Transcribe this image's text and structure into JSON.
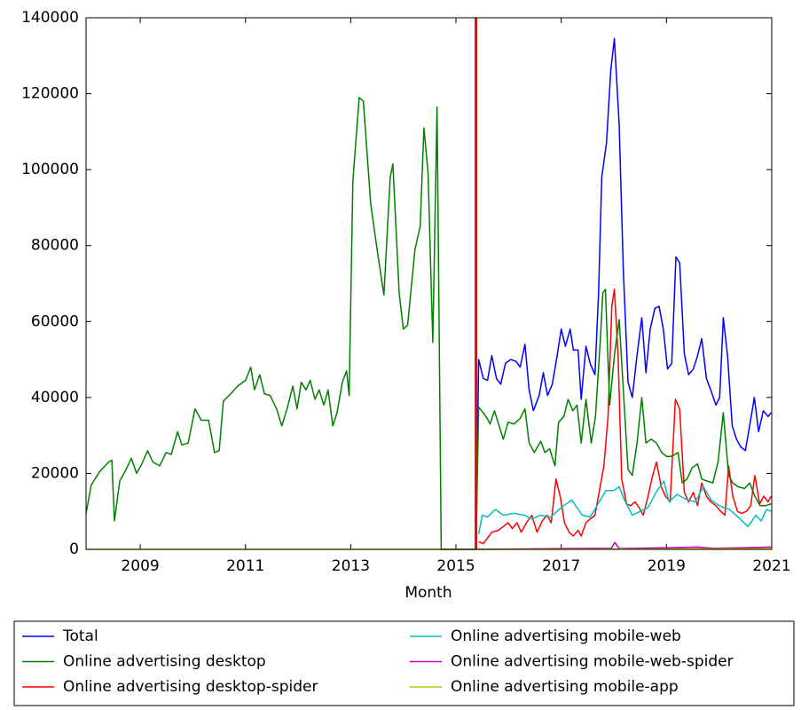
{
  "chart_data": {
    "type": "line",
    "xlabel": "Month",
    "xlim": [
      2007.97,
      2021.0
    ],
    "xticks": [
      2009,
      2011,
      2013,
      2015,
      2017,
      2019,
      2021
    ],
    "ylim": [
      0,
      140000
    ],
    "yticks": [
      0,
      20000,
      40000,
      60000,
      80000,
      100000,
      120000,
      140000
    ],
    "grid": false,
    "legend": "bottom",
    "vline": {
      "x": 2015.38,
      "color": "#ff0000"
    },
    "series": [
      {
        "name": "Total",
        "color": "#0000ff",
        "x": [
          2015.38,
          2015.43,
          2015.52,
          2015.6,
          2015.68,
          2015.77,
          2015.85,
          2015.94,
          2016.04,
          2016.14,
          2016.22,
          2016.31,
          2016.39,
          2016.47,
          2016.58,
          2016.66,
          2016.74,
          2016.83,
          2016.91,
          2017.0,
          2017.08,
          2017.17,
          2017.23,
          2017.32,
          2017.38,
          2017.47,
          2017.55,
          2017.64,
          2017.71,
          2017.77,
          2017.86,
          2017.94,
          2018.01,
          2018.1,
          2018.18,
          2018.27,
          2018.35,
          2018.44,
          2018.53,
          2018.61,
          2018.69,
          2018.78,
          2018.86,
          2018.94,
          2019.02,
          2019.1,
          2019.18,
          2019.25,
          2019.34,
          2019.42,
          2019.51,
          2019.59,
          2019.67,
          2019.76,
          2019.84,
          2019.94,
          2020.01,
          2020.08,
          2020.16,
          2020.25,
          2020.33,
          2020.41,
          2020.5,
          2020.58,
          2020.67,
          2020.75,
          2020.84,
          2020.93,
          2020.99
        ],
        "values": [
          0,
          50000,
          45000,
          44500,
          51000,
          45000,
          43500,
          49000,
          50000,
          49500,
          48000,
          54000,
          42000,
          36500,
          40500,
          46500,
          40500,
          43500,
          50000,
          58000,
          53500,
          58000,
          52500,
          52500,
          39500,
          53500,
          49000,
          46000,
          67500,
          98000,
          107000,
          126000,
          134500,
          112000,
          73500,
          44000,
          40000,
          51000,
          61000,
          46500,
          58000,
          63500,
          64000,
          58000,
          47500,
          49000,
          77000,
          75500,
          51500,
          46000,
          47500,
          51000,
          55500,
          45000,
          42000,
          38000,
          40000,
          61000,
          51000,
          32500,
          29000,
          27000,
          26000,
          32500,
          40000,
          31000,
          36500,
          35000,
          36000
        ]
      },
      {
        "name": "Online advertising desktop",
        "color": "#008000",
        "x": [
          2007.97,
          2008.07,
          2008.23,
          2008.4,
          2008.46,
          2008.51,
          2008.61,
          2008.73,
          2008.83,
          2008.93,
          2009.03,
          2009.14,
          2009.24,
          2009.37,
          2009.49,
          2009.59,
          2009.71,
          2009.79,
          2009.91,
          2010.04,
          2010.16,
          2010.3,
          2010.41,
          2010.5,
          2010.58,
          2010.72,
          2010.85,
          2011.0,
          2011.1,
          2011.17,
          2011.27,
          2011.36,
          2011.47,
          2011.59,
          2011.69,
          2011.79,
          2011.9,
          2011.98,
          2012.06,
          2012.15,
          2012.23,
          2012.32,
          2012.4,
          2012.49,
          2012.57,
          2012.66,
          2012.74,
          2012.84,
          2012.92,
          2012.97,
          2013.04,
          2013.16,
          2013.24,
          2013.38,
          2013.5,
          2013.63,
          2013.75,
          2013.8,
          2013.92,
          2014.0,
          2014.08,
          2014.22,
          2014.32,
          2014.39,
          2014.47,
          2014.56,
          2014.64,
          2014.72,
          2015.38,
          2015.43,
          2015.57,
          2015.65,
          2015.73,
          2015.82,
          2015.9,
          2015.99,
          2016.1,
          2016.22,
          2016.31,
          2016.39,
          2016.49,
          2016.61,
          2016.69,
          2016.78,
          2016.88,
          2016.95,
          2017.05,
          2017.13,
          2017.22,
          2017.3,
          2017.38,
          2017.47,
          2017.57,
          2017.65,
          2017.74,
          2017.79,
          2017.84,
          2017.92,
          2018.01,
          2018.1,
          2018.18,
          2018.27,
          2018.35,
          2018.44,
          2018.53,
          2018.61,
          2018.71,
          2018.81,
          2018.91,
          2019.0,
          2019.1,
          2019.22,
          2019.3,
          2019.39,
          2019.49,
          2019.59,
          2019.67,
          2019.77,
          2019.88,
          2019.98,
          2020.08,
          2020.18,
          2020.26,
          2020.36,
          2020.48,
          2020.58,
          2020.68,
          2020.78,
          2020.88,
          2020.99
        ],
        "values": [
          9500,
          17000,
          20500,
          23000,
          23500,
          7500,
          18000,
          21000,
          24000,
          20000,
          22500,
          26000,
          23000,
          22000,
          25500,
          25000,
          31000,
          27500,
          28000,
          37000,
          34000,
          34000,
          25500,
          26000,
          39000,
          41000,
          43000,
          44500,
          48000,
          42000,
          46000,
          41000,
          40500,
          37000,
          32500,
          37000,
          43000,
          37000,
          44000,
          42000,
          44500,
          39500,
          42000,
          38000,
          42000,
          32500,
          36000,
          44000,
          47000,
          40500,
          97000,
          119000,
          118000,
          91000,
          79000,
          67000,
          98000,
          101500,
          67500,
          58000,
          59000,
          79000,
          85000,
          111000,
          99000,
          54500,
          116500,
          0,
          0,
          37500,
          35000,
          33000,
          36500,
          32500,
          29000,
          33500,
          33000,
          34500,
          37000,
          28000,
          25500,
          28500,
          25500,
          26500,
          22000,
          33500,
          35000,
          39500,
          36500,
          38000,
          28000,
          39500,
          28000,
          35000,
          54500,
          67500,
          68500,
          38000,
          51000,
          60500,
          42000,
          21000,
          19500,
          28000,
          40000,
          28000,
          29000,
          28000,
          25500,
          24500,
          24500,
          25500,
          17500,
          18500,
          21500,
          22500,
          18500,
          18000,
          17500,
          23000,
          36000,
          19500,
          17500,
          16500,
          16000,
          17500,
          14000,
          11500,
          11500,
          12000
        ]
      },
      {
        "name": "Online advertising desktop-spider",
        "color": "#ff0000",
        "x": [
          2015.43,
          2015.52,
          2015.6,
          2015.68,
          2015.8,
          2015.9,
          2015.99,
          2016.07,
          2016.16,
          2016.24,
          2016.34,
          2016.44,
          2016.54,
          2016.64,
          2016.73,
          2016.81,
          2016.9,
          2016.98,
          2017.06,
          2017.15,
          2017.23,
          2017.32,
          2017.38,
          2017.47,
          2017.55,
          2017.64,
          2017.72,
          2017.81,
          2017.89,
          2017.96,
          2018.01,
          2018.08,
          2018.15,
          2018.24,
          2018.32,
          2018.4,
          2018.48,
          2018.56,
          2018.65,
          2018.73,
          2018.81,
          2018.9,
          2018.98,
          2019.07,
          2019.17,
          2019.25,
          2019.34,
          2019.42,
          2019.51,
          2019.59,
          2019.67,
          2019.76,
          2019.84,
          2019.94,
          2020.03,
          2020.11,
          2020.18,
          2020.26,
          2020.35,
          2020.43,
          2020.52,
          2020.6,
          2020.68,
          2020.77,
          2020.85,
          2020.93,
          2020.99
        ],
        "values": [
          2000,
          1500,
          3000,
          4500,
          5000,
          6000,
          7000,
          5500,
          7000,
          4500,
          7000,
          9000,
          4500,
          7500,
          9000,
          7000,
          18500,
          14000,
          7000,
          4500,
          3500,
          5000,
          3500,
          7000,
          8000,
          9000,
          15000,
          22000,
          35000,
          64000,
          68500,
          51000,
          18500,
          12000,
          11500,
          12500,
          11000,
          9000,
          14000,
          19000,
          23000,
          16500,
          14000,
          12500,
          39500,
          37000,
          15000,
          12500,
          15000,
          11500,
          17500,
          14000,
          12500,
          11500,
          10000,
          9000,
          22000,
          14000,
          10000,
          9500,
          10000,
          11500,
          19500,
          12000,
          14000,
          12500,
          14000
        ]
      },
      {
        "name": "Online advertising mobile-web",
        "color": "#00bfbf",
        "x": [
          2015.43,
          2015.5,
          2015.6,
          2015.75,
          2015.9,
          2016.1,
          2016.3,
          2016.45,
          2016.6,
          2016.8,
          2017.0,
          2017.2,
          2017.4,
          2017.55,
          2017.7,
          2017.85,
          2018.0,
          2018.1,
          2018.2,
          2018.35,
          2018.5,
          2018.65,
          2018.8,
          2018.95,
          2019.05,
          2019.2,
          2019.4,
          2019.55,
          2019.7,
          2019.85,
          2020.0,
          2020.2,
          2020.4,
          2020.55,
          2020.7,
          2020.8,
          2020.9,
          2020.99
        ],
        "values": [
          4000,
          9000,
          8500,
          10500,
          9000,
          9500,
          9000,
          8000,
          9000,
          8500,
          11000,
          13000,
          9000,
          8500,
          12000,
          15500,
          15500,
          16500,
          13000,
          9000,
          10000,
          11000,
          15000,
          18000,
          12500,
          14500,
          13000,
          12500,
          16500,
          13000,
          11500,
          10500,
          8000,
          6000,
          9000,
          7500,
          10500,
          10000
        ]
      },
      {
        "name": "Online advertising mobile-web-spider",
        "color": "#bf00bf",
        "x": [
          2015.43,
          2017.95,
          2018.02,
          2018.1,
          2019.6,
          2019.9,
          2020.99
        ],
        "values": [
          0,
          300,
          1800,
          200,
          600,
          300,
          600
        ]
      },
      {
        "name": "Online advertising mobile-app",
        "color": "#bfbf00",
        "x": [
          2007.97,
          2015.4,
          2019.0,
          2020.99
        ],
        "values": [
          0,
          0,
          100,
          200
        ]
      }
    ]
  }
}
